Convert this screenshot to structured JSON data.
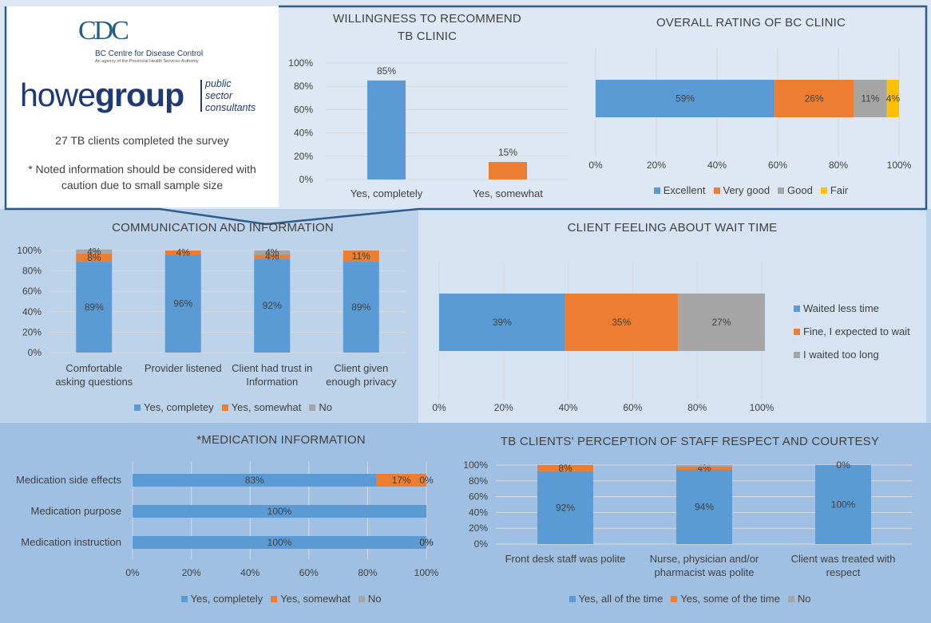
{
  "logos": {
    "cdc_mark": "CDC",
    "cdc_name": "BC Centre for Disease Control",
    "cdc_subtitle": "An agency of the Provincial Health Services Authority",
    "howe_light": "howe",
    "howe_bold": "group",
    "howe_tagline_1": "public",
    "howe_tagline_2": "sector",
    "howe_tagline_3": "consultants"
  },
  "info": {
    "respondents": "27 TB clients completed the survey",
    "caution": "* Noted information should be considered with caution due to small sample size"
  },
  "colors": {
    "blue": "#5b9bd5",
    "orange": "#ed7d31",
    "gray": "#a5a5a5",
    "yellow": "#ffc000",
    "panel_light": "#dde8f4",
    "panel_mid": "#bdd3ea",
    "panel_dark": "#9fc0e2",
    "frame": "#2e5c8a"
  },
  "chart_data": [
    {
      "id": "recommend",
      "type": "bar",
      "title": "WILLINGNESS TO RECOMMEND TB CLINIC",
      "title_lines": [
        "WILLINGNESS TO RECOMMEND",
        "TB CLINIC"
      ],
      "categories": [
        "Yes, completely",
        "Yes, somewhat"
      ],
      "values": [
        85,
        15
      ],
      "value_labels": [
        "85%",
        "15%"
      ],
      "bar_colors": [
        "#5b9bd5",
        "#ed7d31"
      ],
      "ylim": [
        0,
        100
      ],
      "yticks": [
        "0%",
        "20%",
        "40%",
        "60%",
        "80%",
        "100%"
      ],
      "grid": true
    },
    {
      "id": "overall",
      "type": "bar",
      "orientation": "horizontal-stacked",
      "title": "OVERALL RATING OF BC CLINIC",
      "series": [
        {
          "name": "Excellent",
          "values": [
            59
          ],
          "labels": [
            "59%"
          ],
          "color": "#5b9bd5"
        },
        {
          "name": "Very good",
          "values": [
            26
          ],
          "labels": [
            "26%"
          ],
          "color": "#ed7d31"
        },
        {
          "name": "Good",
          "values": [
            11
          ],
          "labels": [
            "11%"
          ],
          "color": "#a5a5a5"
        },
        {
          "name": "Fair",
          "values": [
            4
          ],
          "labels": [
            "4%"
          ],
          "color": "#ffc000"
        }
      ],
      "xlim": [
        0,
        100
      ],
      "xticks": [
        "0%",
        "20%",
        "40%",
        "60%",
        "80%",
        "100%"
      ],
      "grid": true,
      "legend": "bottom"
    },
    {
      "id": "communication",
      "type": "bar",
      "orientation": "vertical-stacked",
      "title": "COMMUNICATION AND INFORMATION",
      "categories": [
        [
          "Comfortable",
          "asking questions"
        ],
        [
          "Provider listened"
        ],
        [
          "Client had trust in",
          "Information"
        ],
        [
          "Client given",
          "enough privacy"
        ]
      ],
      "series": [
        {
          "name": "Yes, completey",
          "values": [
            89,
            96,
            92,
            89
          ],
          "labels": [
            "89%",
            "96%",
            "92%",
            "89%"
          ],
          "color": "#5b9bd5"
        },
        {
          "name": "Yes, somewhat",
          "values": [
            8,
            4,
            4,
            11
          ],
          "labels": [
            "8%",
            "4%",
            "4%",
            "11%"
          ],
          "color": "#ed7d31"
        },
        {
          "name": "No",
          "values": [
            4,
            0,
            4,
            0
          ],
          "labels": [
            "4%",
            "",
            "4%",
            ""
          ],
          "color": "#a5a5a5"
        }
      ],
      "ylim": [
        0,
        100
      ],
      "yticks": [
        "0%",
        "20%",
        "40%",
        "60%",
        "80%",
        "100%"
      ],
      "grid": true,
      "legend": "bottom"
    },
    {
      "id": "waittime",
      "type": "bar",
      "orientation": "horizontal-stacked",
      "title": "CLIENT FEELING ABOUT WAIT TIME",
      "series": [
        {
          "name": "Waited less time",
          "values": [
            39
          ],
          "labels": [
            "39%"
          ],
          "color": "#5b9bd5"
        },
        {
          "name": "Fine, I expected to wait",
          "values": [
            35
          ],
          "labels": [
            "35%"
          ],
          "color": "#ed7d31"
        },
        {
          "name": "I waited too long",
          "values": [
            27
          ],
          "labels": [
            "27%"
          ],
          "color": "#a5a5a5"
        }
      ],
      "xlim": [
        0,
        100
      ],
      "xticks": [
        "0%",
        "20%",
        "40%",
        "60%",
        "80%",
        "100%"
      ],
      "grid": true,
      "legend": "right"
    },
    {
      "id": "medication",
      "type": "bar",
      "orientation": "horizontal-stacked",
      "title": "*MEDICATION INFORMATION",
      "categories": [
        "Medication side effects",
        "Medication purpose",
        "Medication instruction"
      ],
      "series": [
        {
          "name": "Yes, completely",
          "values": [
            83,
            100,
            100
          ],
          "labels": [
            "83%",
            "100%",
            "100%"
          ],
          "color": "#5b9bd5"
        },
        {
          "name": "Yes, somewhat",
          "values": [
            17,
            0,
            0
          ],
          "labels": [
            "17%",
            "",
            "0%"
          ],
          "color": "#ed7d31"
        },
        {
          "name": "No",
          "values": [
            0,
            0,
            0
          ],
          "labels": [
            "0%",
            "",
            "0%"
          ],
          "color": "#a5a5a5"
        }
      ],
      "xlim": [
        0,
        100
      ],
      "xticks": [
        "0%",
        "20%",
        "40%",
        "60%",
        "80%",
        "100%"
      ],
      "grid": true,
      "legend": "bottom"
    },
    {
      "id": "respect",
      "type": "bar",
      "orientation": "vertical-stacked",
      "title": "TB CLIENTS' PERCEPTION OF STAFF RESPECT AND COURTESY",
      "categories": [
        [
          "Front desk staff was polite"
        ],
        [
          "Nurse, physician and/or",
          "pharmacist was polite"
        ],
        [
          "Client was treated with",
          "respect"
        ]
      ],
      "series": [
        {
          "name": "Yes, all of the time",
          "values": [
            92,
            94,
            100
          ],
          "labels": [
            "92%",
            "94%",
            "100%"
          ],
          "color": "#5b9bd5"
        },
        {
          "name": "Yes, some of the time",
          "values": [
            8,
            4,
            0
          ],
          "labels": [
            "8%",
            "4%",
            "0%"
          ],
          "color": "#ed7d31"
        },
        {
          "name": "No",
          "values": [
            0,
            2,
            0
          ],
          "labels": [
            "",
            "",
            ""
          ],
          "color": "#a5a5a5"
        }
      ],
      "ylim": [
        0,
        100
      ],
      "yticks": [
        "0%",
        "20%",
        "40%",
        "60%",
        "80%",
        "100%"
      ],
      "grid": true,
      "legend": "bottom"
    }
  ]
}
